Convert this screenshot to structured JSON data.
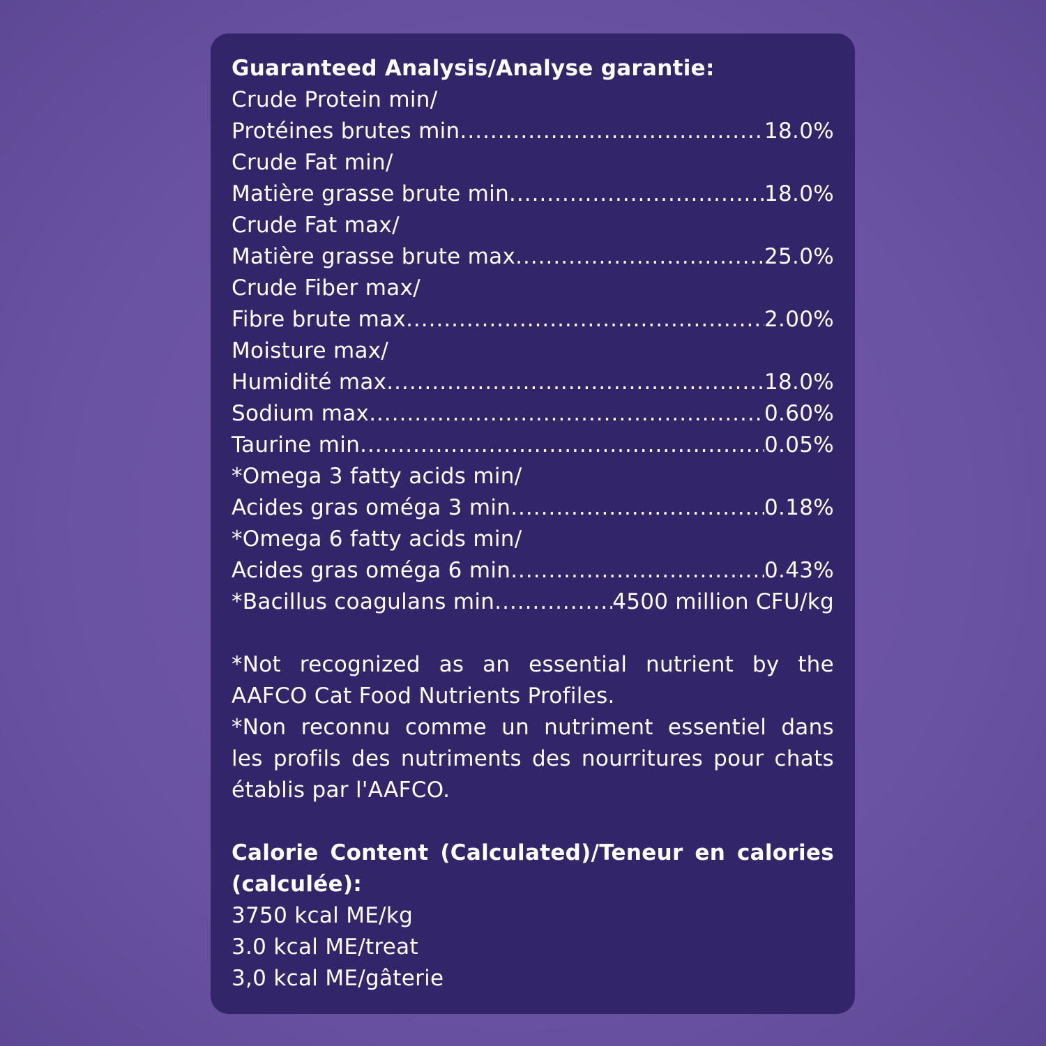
{
  "colors": {
    "background": "#6b53a3",
    "panel": "#32256a",
    "text": "#ffffff"
  },
  "guaranteed_analysis": {
    "title": "Guaranteed Analysis/Analyse garantie:",
    "items": [
      {
        "line1": "Crude Protein min/",
        "label": "Protéines brutes min",
        "value": "18.0%"
      },
      {
        "line1": "Crude Fat min/",
        "label": "Matière grasse brute min",
        "value": "18.0%"
      },
      {
        "line1": "Crude Fat max/",
        "label": "Matière grasse brute max",
        "value": "25.0%"
      },
      {
        "line1": "Crude Fiber max/",
        "label": "Fibre brute max ",
        "value": "2.00%"
      },
      {
        "line1": "Moisture max/",
        "label": "Humidité max",
        "value": "18.0%"
      },
      {
        "label": "Sodium max ",
        "value": "0.60%"
      },
      {
        "label": "Taurine min",
        "value": "0.05%"
      },
      {
        "line1": "*Omega 3 fatty acids min/",
        "label": "Acides gras oméga 3 min ",
        "value": "0.18%"
      },
      {
        "line1": "*Omega 6 fatty acids min/",
        "label": "Acides gras oméga 6 min ",
        "value": "0.43%"
      },
      {
        "label": "*Bacillus coagulans min ",
        "value": "4500 million CFU/kg"
      }
    ]
  },
  "footnotes": {
    "en_line1": "*Not recognized as an essential nutrient by the",
    "en_line2": "AAFCO Cat Food Nutrients Profiles.",
    "fr_line1": "*Non reconnu comme un nutriment essentiel dans",
    "fr_line2": "les profils des nutriments des nourritures pour chats",
    "fr_line3": "établis par l'AAFCO."
  },
  "calories": {
    "title_line1": "Calorie Content (Calculated)/Teneur en calories",
    "title_line2": "(calculée):",
    "values": [
      "3750 kcal ME/kg",
      "3.0 kcal ME/treat",
      "3,0 kcal ME/gâterie"
    ]
  }
}
